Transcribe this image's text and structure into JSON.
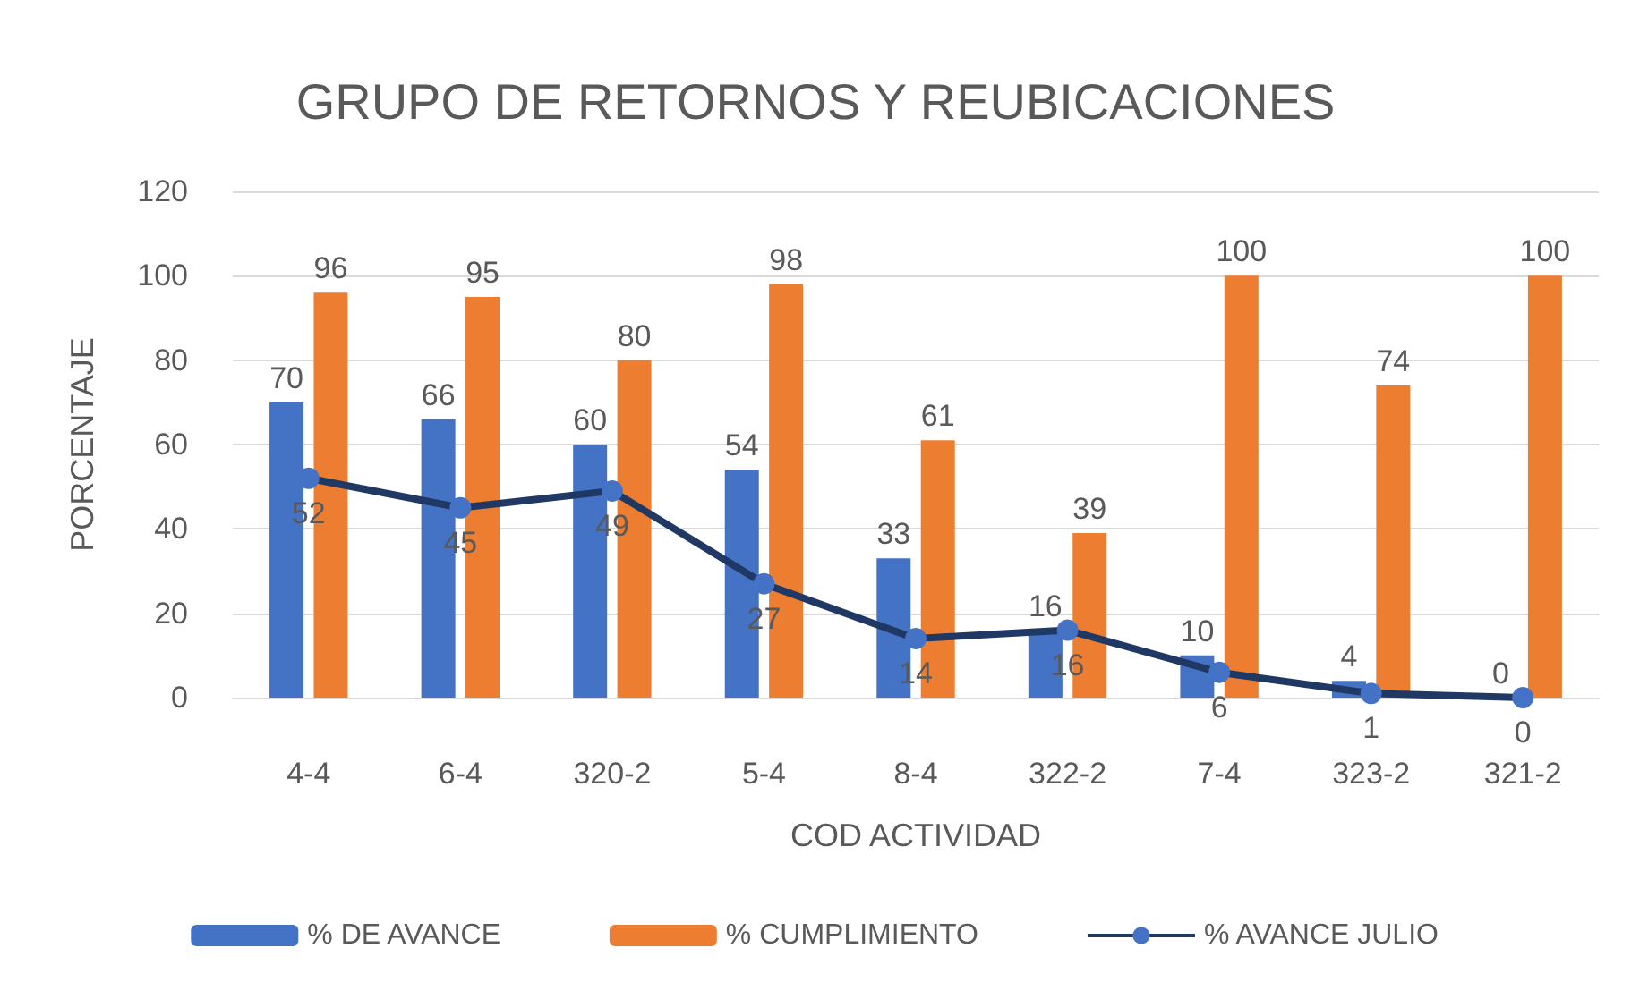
{
  "chart_data": {
    "type": "bar",
    "title": "GRUPO DE RETORNOS Y REUBICACIONES",
    "xlabel": "COD ACTIVIDAD",
    "ylabel": "PORCENTAJE",
    "categories": [
      "4-4",
      "6-4",
      "320-2",
      "5-4",
      "8-4",
      "322-2",
      "7-4",
      "323-2",
      "321-2"
    ],
    "series": [
      {
        "name": "% DE AVANCE",
        "color": "#4472c4",
        "values": [
          70,
          66,
          60,
          54,
          33,
          16,
          10,
          4,
          0
        ]
      },
      {
        "name": "% CUMPLIMIENTO",
        "color": "#ed7d31",
        "values": [
          96,
          95,
          80,
          98,
          61,
          39,
          100,
          74,
          100
        ]
      },
      {
        "name": "% AVANCE JULIO",
        "type": "line",
        "color": "#203864",
        "marker": "circle",
        "values": [
          52,
          45,
          49,
          27,
          14,
          16,
          6,
          1,
          0
        ]
      }
    ],
    "ylim": [
      0,
      120
    ],
    "yticks": [
      0,
      20,
      40,
      60,
      80,
      100,
      120
    ],
    "grid": "y",
    "legend": "bottom",
    "data_labels": true
  }
}
